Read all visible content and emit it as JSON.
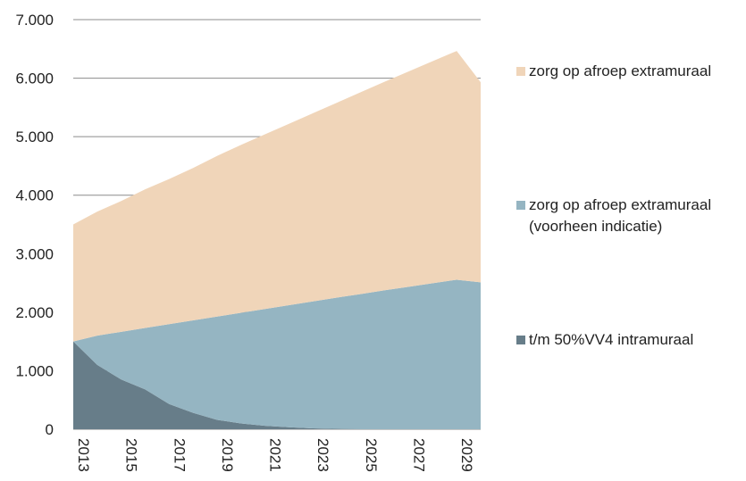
{
  "chart_data": {
    "type": "area",
    "stacked": true,
    "x": [
      2013,
      2014,
      2015,
      2016,
      2017,
      2018,
      2019,
      2020,
      2021,
      2022,
      2023,
      2024,
      2025,
      2026,
      2027,
      2028,
      2029,
      2030
    ],
    "x_tick_labels": [
      "2013",
      "2015",
      "2017",
      "2019",
      "2021",
      "2023",
      "2025",
      "2027",
      "2029"
    ],
    "y_tick_labels": [
      "0",
      "1.000",
      "2.000",
      "3.000",
      "4.000",
      "5.000",
      "6.000",
      "7.000"
    ],
    "ylim": [
      0,
      7000
    ],
    "grid": true,
    "legend_position": "right",
    "series": [
      {
        "name": "t/m 50%VV4 intramuraal",
        "color": "#677d89",
        "values": [
          1500,
          1100,
          850,
          680,
          430,
          280,
          160,
          100,
          60,
          35,
          15,
          5,
          0,
          0,
          0,
          0,
          0,
          0
        ]
      },
      {
        "name": "zorg op afroep extramuraal",
        "name_line2": "(voorheen indicatie)",
        "color": "#95b5c2",
        "values": [
          0,
          500,
          815,
          1050,
          1365,
          1580,
          1765,
          1890,
          1995,
          2085,
          2170,
          2245,
          2310,
          2375,
          2435,
          2495,
          2555,
          2510
        ]
      },
      {
        "name": "zorg op afroep extramuraal",
        "color": "#f0d5b9",
        "values": [
          2000,
          2120,
          2235,
          2370,
          2480,
          2605,
          2745,
          2870,
          2985,
          3100,
          3215,
          3330,
          3450,
          3565,
          3680,
          3795,
          3910,
          3420
        ]
      }
    ]
  }
}
